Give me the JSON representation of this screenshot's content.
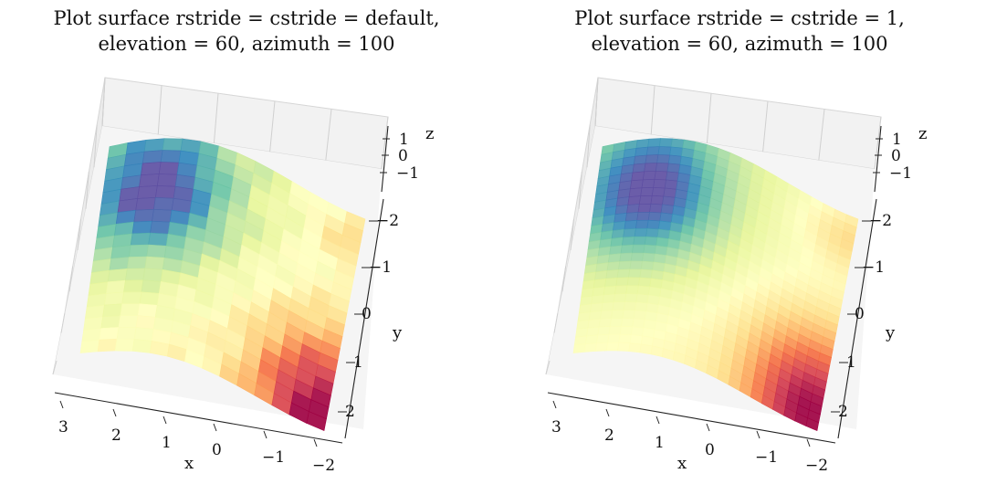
{
  "chart_data": [
    {
      "type": "surface3d",
      "title_line1": "Plot surface rstride = cstride = default,",
      "title_line2": "elevation = 60, azimuth = 100",
      "xlabel": "x",
      "ylabel": "y",
      "zlabel": "z",
      "x_ticks": [
        "3",
        "2",
        "1",
        "0",
        "−1",
        "−2"
      ],
      "y_ticks": [
        "−2",
        "−1",
        "0",
        "1",
        "2"
      ],
      "z_ticks": [
        "1",
        "0",
        "−1"
      ],
      "xlim": [
        -2,
        3
      ],
      "ylim": [
        -2,
        2
      ],
      "zlim": [
        -1,
        1
      ],
      "colormap": "Spectral",
      "rstride": "default",
      "cstride": "default",
      "elevation": 60,
      "azimuth": 100
    },
    {
      "type": "surface3d",
      "title_line1": "Plot surface rstride = cstride = 1,",
      "title_line2": "elevation = 60, azimuth = 100",
      "xlabel": "x",
      "ylabel": "y",
      "zlabel": "z",
      "x_ticks": [
        "3",
        "2",
        "1",
        "0",
        "−1",
        "−2"
      ],
      "y_ticks": [
        "−2",
        "−1",
        "0",
        "1",
        "2"
      ],
      "z_ticks": [
        "1",
        "0",
        "−1"
      ],
      "xlim": [
        -2,
        3
      ],
      "ylim": [
        -2,
        2
      ],
      "zlim": [
        -1,
        1
      ],
      "colormap": "Spectral",
      "rstride": 1,
      "cstride": 1,
      "elevation": 60,
      "azimuth": 100
    }
  ]
}
